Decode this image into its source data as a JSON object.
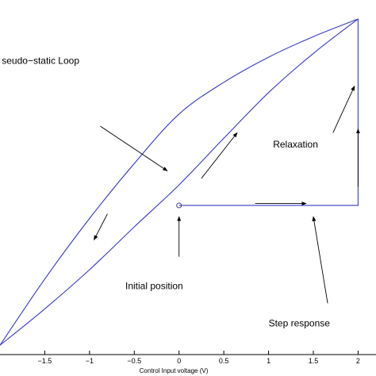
{
  "chart_data": {
    "type": "line",
    "title": "",
    "xlabel": "Control Input voltage (V)",
    "ylabel": "",
    "xlim": [
      -2,
      2.2
    ],
    "ylim": [
      -1.6,
      2.05
    ],
    "x_ticks": [
      -1.5,
      -1,
      -0.5,
      0,
      0.5,
      1,
      1.5,
      2
    ],
    "x_tick_labels": [
      "−1.5",
      "−1",
      "−0.5",
      "0",
      "0.5",
      "1",
      "1.5",
      "2"
    ],
    "grid": false,
    "line_color": "#3838c8",
    "series": [
      {
        "name": "",
        "role": "loop-upper",
        "x": [
          -2,
          -1.5,
          -1,
          -0.5,
          0,
          0.5,
          1,
          1.5,
          2
        ],
        "y": [
          -1.5,
          -0.79,
          -0.14,
          0.45,
          0.98,
          1.32,
          1.59,
          1.81,
          2
        ]
      },
      {
        "name": "",
        "role": "loop-lower",
        "x": [
          -2,
          -1.5,
          -1,
          -0.5,
          0,
          0.5,
          1,
          1.5,
          2
        ],
        "y": [
          -1.5,
          -1.11,
          -0.69,
          -0.23,
          0.22,
          0.72,
          1.21,
          1.63,
          2
        ]
      },
      {
        "name": "",
        "role": "step-response",
        "x": [
          0,
          2,
          2
        ],
        "y": [
          0,
          0,
          2
        ]
      }
    ],
    "markers": [
      {
        "x": 0,
        "y": 0,
        "shape": "circle"
      }
    ],
    "annotations": [
      {
        "id": "pseudo-static-loop",
        "text": "seudo−static Loop",
        "x": -1.98,
        "y": 1.52
      },
      {
        "id": "relaxation",
        "text": "Relaxation",
        "x": 1.05,
        "y": 0.62
      },
      {
        "id": "initial-position",
        "text": "Initial position",
        "x": -0.6,
        "y": -0.9
      },
      {
        "id": "step-response",
        "text": "Step response",
        "x": 1.0,
        "y": -1.3
      }
    ],
    "arrows": [
      {
        "id": "loop-pointer",
        "from": [
          -0.88,
          0.85
        ],
        "to": [
          -0.13,
          0.37
        ]
      },
      {
        "id": "pointer-initial",
        "from": [
          0,
          -0.55
        ],
        "to": [
          0,
          -0.12
        ]
      },
      {
        "id": "pointer-step",
        "from": [
          1.66,
          -1.05
        ],
        "to": [
          1.5,
          -0.12
        ]
      },
      {
        "id": "pointer-relaxation",
        "from": [
          1.72,
          0.78
        ],
        "to": [
          1.96,
          1.28
        ]
      },
      {
        "id": "dir-upper-branch",
        "from": [
          0.25,
          0.29
        ],
        "to": [
          0.65,
          0.78
        ]
      },
      {
        "id": "dir-lower-branch",
        "from": [
          -0.8,
          -0.09
        ],
        "to": [
          -0.95,
          -0.37
        ]
      },
      {
        "id": "dir-step-horizontal",
        "from": [
          0.85,
          0.02
        ],
        "to": [
          1.42,
          0.02
        ]
      },
      {
        "id": "dir-step-vertical",
        "from": [
          2.0,
          0.2
        ],
        "to": [
          2.0,
          0.82
        ]
      }
    ]
  }
}
